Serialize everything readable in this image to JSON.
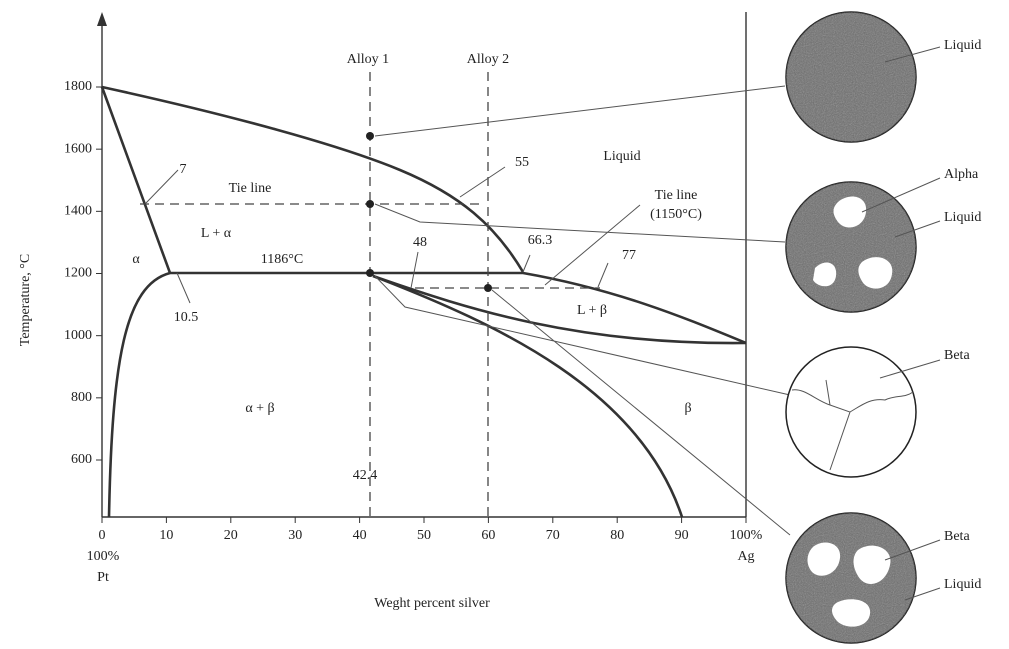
{
  "diagram": {
    "x_label": "Weght percent silver",
    "y_label": "Temperature, °C",
    "xlim": [
      0,
      100
    ],
    "xticks": [
      0,
      10,
      20,
      30,
      40,
      50,
      60,
      70,
      80,
      90,
      {
        "value": 100,
        "label": "100%"
      }
    ],
    "yticks": [
      600,
      800,
      1000,
      1200,
      1400,
      1600,
      1800
    ],
    "end_labels": [
      "100%",
      "Pt",
      "Ag"
    ],
    "annotations": [
      "Alloy 1",
      "Alloy 2",
      "Liquid",
      "55",
      "7",
      "Tie line",
      "L + α",
      "α",
      "1186°C",
      "48",
      "66.3",
      "77",
      "Tie line",
      "(1150°C)",
      "10.5",
      "L + β",
      "α + β",
      "β",
      "42.4"
    ],
    "micrographs": [
      {
        "labels": [
          "Liquid"
        ]
      },
      {
        "labels": [
          "Alpha",
          "Liquid"
        ]
      },
      {
        "labels": [
          "Beta"
        ]
      },
      {
        "labels": [
          "Beta",
          "Liquid"
        ]
      }
    ]
  }
}
